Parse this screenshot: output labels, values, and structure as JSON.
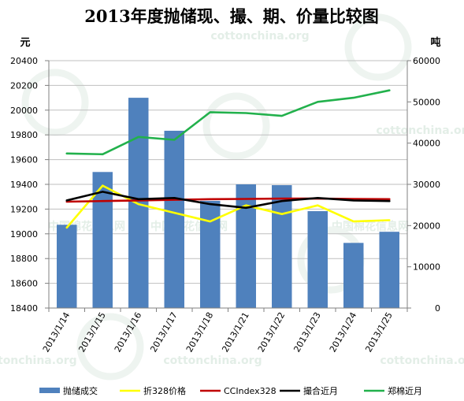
{
  "chart_data": {
    "type": "bar",
    "title": "2013年度抛储现、撮、期、价量比较图",
    "left_axis_unit": "元",
    "right_axis_unit": "吨",
    "categories": [
      "2013/1/14",
      "2013/1/15",
      "2013/1/16",
      "2013/1/17",
      "2013/1/18",
      "2013/1/21",
      "2013/1/22",
      "2013/1/23",
      "2013/1/24",
      "2013/1/25"
    ],
    "left_ylim": [
      18400,
      20400
    ],
    "left_ticks": [
      18400,
      18600,
      18800,
      19000,
      19200,
      19400,
      19600,
      19800,
      20000,
      20200,
      20400
    ],
    "right_ylim": [
      0,
      60000
    ],
    "right_ticks": [
      0,
      10000,
      20000,
      30000,
      40000,
      50000,
      60000
    ],
    "grid": true,
    "legend_position": "bottom",
    "series": [
      {
        "name": "抛储成交",
        "kind": "bar",
        "axis": "right",
        "color": "#4f81bd",
        "values": [
          20200,
          33000,
          51000,
          43000,
          26000,
          30000,
          29800,
          23500,
          15800,
          18500
        ]
      },
      {
        "name": "折328价格",
        "kind": "line",
        "axis": "left",
        "color": "#ffff00",
        "values": [
          19050,
          19390,
          19240,
          19170,
          19100,
          19230,
          19160,
          19230,
          19100,
          19110
        ]
      },
      {
        "name": "CCIndex328",
        "kind": "line",
        "axis": "left",
        "color": "#c00000",
        "values": [
          19260,
          19265,
          19270,
          19275,
          19280,
          19282,
          19285,
          19285,
          19282,
          19280
        ]
      },
      {
        "name": "撮合近月",
        "kind": "line",
        "axis": "left",
        "color": "#000000",
        "values": [
          19270,
          19340,
          19280,
          19290,
          19240,
          19210,
          19265,
          19290,
          19270,
          19265
        ]
      },
      {
        "name": "郑棉近月",
        "kind": "line",
        "axis": "right",
        "color": "#22b14c",
        "values": [
          37500,
          37300,
          41500,
          40800,
          47500,
          47300,
          46600,
          50000,
          51000,
          52800
        ]
      }
    ],
    "watermarks": [
      "cottonchina.org",
      "中国棉花信息网"
    ]
  }
}
